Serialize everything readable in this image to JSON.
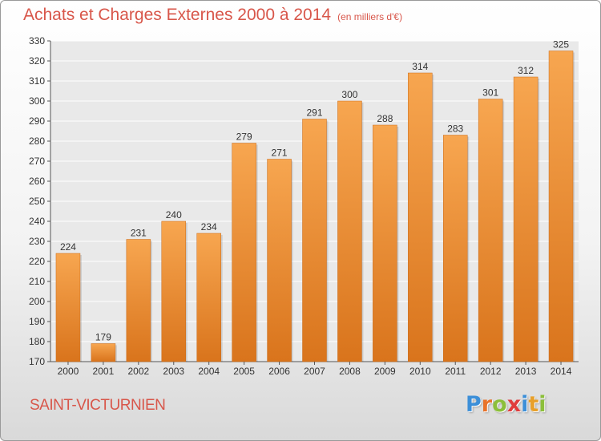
{
  "chart_data": {
    "type": "bar",
    "title": "Achats et Charges Externes 2000 à 2014",
    "subtitle": "(en milliers d'€)",
    "categories": [
      "2000",
      "2001",
      "2002",
      "2003",
      "2004",
      "2005",
      "2006",
      "2007",
      "2008",
      "2009",
      "2010",
      "2011",
      "2012",
      "2013",
      "2014"
    ],
    "values": [
      224,
      179,
      231,
      240,
      234,
      279,
      271,
      291,
      300,
      288,
      314,
      283,
      301,
      312,
      325
    ],
    "ylim": [
      170,
      330
    ],
    "yticks": [
      170,
      180,
      190,
      200,
      210,
      220,
      230,
      240,
      250,
      260,
      270,
      280,
      290,
      300,
      310,
      320,
      330
    ],
    "grid": true,
    "bar_color_top": "#f7a650",
    "bar_color_bottom": "#d9741c"
  },
  "footer": {
    "place": "SAINT-VICTURNIEN",
    "logo_letters": [
      {
        "ch": "P",
        "color": "#3c8fd8"
      },
      {
        "ch": "r",
        "color": "#e8732a"
      },
      {
        "ch": "o",
        "color": "#8cbf3a"
      },
      {
        "ch": "x",
        "color": "#e03c3c"
      },
      {
        "ch": "i",
        "color": "#3c8fd8"
      },
      {
        "ch": "t",
        "color": "#e8a02a"
      },
      {
        "ch": "i",
        "color": "#8cbf3a"
      }
    ]
  }
}
